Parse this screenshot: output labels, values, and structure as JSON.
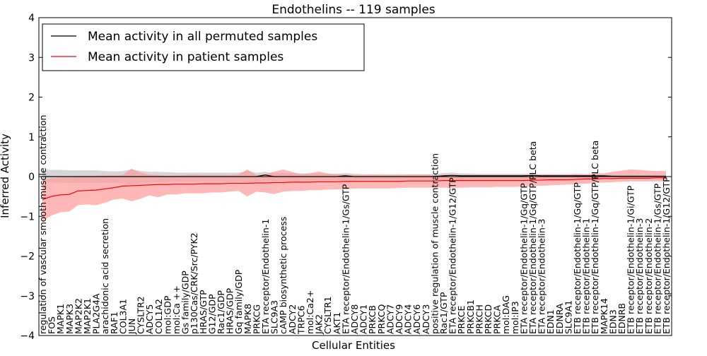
{
  "chart_data": {
    "type": "line",
    "title": "Endothelins -- 119 samples",
    "xlabel": "Cellular Entities",
    "ylabel": "Inferred Activity",
    "ylim": [
      -4,
      4
    ],
    "yticks": [
      4,
      3,
      2,
      1,
      0,
      -1,
      -2,
      -3,
      -4
    ],
    "grid": false,
    "legend_position": "top-left",
    "legend": [
      "Mean activity in all permuted samples",
      "Mean activity in patient samples"
    ],
    "colors": {
      "permuted_line": "#000000",
      "permuted_band": "#c8c8c8",
      "patient_line": "#ff0000",
      "patient_band": "#ff9a9a",
      "zero_line": "#000000"
    },
    "categories": [
      "regulation of vascular smooth muscle contraction",
      "FOS",
      "MAPK1",
      "MAPK3",
      "MAP2K2",
      "MAP2K1",
      "PLA2G4A",
      "arachidonic acid secretion",
      "RAF1",
      "COL3A1",
      "JUN",
      "CYSLTR2",
      "ADCY5",
      "COL1A2",
      "mol:GDP",
      "mol:Ca ++",
      "Gs family/GDP",
      "p130Cas/CRK/Src/PYK2",
      "HRAS/GTP",
      "G12/GDP",
      "Rac1/GDP",
      "HRAS/GDP",
      "Gq family/GDP",
      "MAPK8",
      "PRKCG",
      "ETA receptor/Endothelin-1",
      "SLC9A3",
      "cAMP biosynthetic process",
      "ADCY2",
      "TRPC6",
      "mol:Ca2+",
      "JAK2",
      "CYSLTR1",
      "AKT1",
      "ETA receptor/Endothelin-1/Gs/GTP",
      "ADCY8",
      "ADCY1",
      "PRKCB",
      "PRKCQ",
      "ADCY7",
      "ADCY9",
      "ADCY4",
      "ADCY6",
      "ADCY3",
      "positive regulation of muscle contraction",
      "Rac1/GTP",
      "ETA receptor/Endothelin-1/G12/GTP",
      "PRKCE",
      "PRKCB1",
      "PRKCH",
      "PRKCD",
      "PRKCA",
      "mol:DAG",
      "mol:IP3",
      "ETA receptor/Endothelin-1/Gq/GTP",
      "ETA receptor/Endothelin-1/Gq/GTP/PLC beta",
      "ETA receptor/Endothelin-3",
      "EDN1",
      "EDNRA",
      "SLC9A1",
      "ETB receptor/Endothelin-1/Gq/GTP",
      "ETB receptor/Endothelin-1",
      "ETB receptor/Endothelin-1/Gq/GTP/PLC beta",
      "MAPK14",
      "EDN3",
      "EDNRB",
      "ETB receptor/Endothelin-1/Gi/GTP",
      "ETB receptor/Endothelin-3",
      "ETB receptor/Endothelin-2",
      "ETB receptor/Endothelin-1/Gs/GTP",
      "ETB receptor/Endothelin-1/G12/GTP"
    ],
    "series": [
      {
        "name": "Mean activity in all permuted samples",
        "values": [
          0,
          0,
          0,
          0,
          0,
          0,
          0,
          0,
          0,
          0,
          0,
          0,
          0,
          0,
          0,
          0,
          0,
          0,
          0,
          0,
          0,
          0,
          0,
          0,
          0,
          0.04,
          0,
          0,
          0,
          0,
          0,
          0,
          0,
          0,
          0.02,
          0,
          0,
          0,
          0,
          0,
          0,
          0,
          0,
          0,
          0,
          0.02,
          0.03,
          0.02,
          0.02,
          0.02,
          0.02,
          0.02,
          0.02,
          0.02,
          0.02,
          0.03,
          0.02,
          0.02,
          0.02,
          0.02,
          0.02,
          0.02,
          0.02,
          0.02,
          0.01,
          0.01,
          0.01,
          0.01,
          0.01,
          0.01,
          0.01
        ],
        "lower": [
          -0.12,
          -0.15,
          -0.15,
          -0.16,
          -0.16,
          -0.16,
          -0.16,
          -0.15,
          -0.16,
          -0.17,
          -0.2,
          -0.16,
          -0.15,
          -0.15,
          -0.14,
          -0.13,
          -0.13,
          -0.13,
          -0.12,
          -0.12,
          -0.12,
          -0.12,
          -0.12,
          -0.15,
          -0.12,
          -0.12,
          -0.12,
          -0.12,
          -0.12,
          -0.11,
          -0.1,
          -0.1,
          -0.1,
          -0.1,
          -0.1,
          -0.09,
          -0.09,
          -0.08,
          -0.08,
          -0.08,
          -0.08,
          -0.08,
          -0.08,
          -0.08,
          -0.08,
          -0.1,
          -0.1,
          -0.09,
          -0.09,
          -0.08,
          -0.08,
          -0.08,
          -0.08,
          -0.08,
          -0.08,
          -0.08,
          -0.07,
          -0.07,
          -0.06,
          -0.06,
          -0.06,
          -0.06,
          -0.06,
          -0.06,
          -0.05,
          -0.05,
          -0.05,
          -0.05,
          -0.05,
          -0.05,
          -0.05
        ],
        "upper": [
          0.17,
          0.17,
          0.17,
          0.16,
          0.16,
          0.16,
          0.16,
          0.14,
          0.13,
          0.14,
          0.18,
          0.14,
          0.12,
          0.12,
          0.11,
          0.1,
          0.1,
          0.1,
          0.1,
          0.1,
          0.1,
          0.1,
          0.1,
          0.14,
          0.1,
          0.12,
          0.09,
          0.09,
          0.09,
          0.08,
          0.08,
          0.08,
          0.07,
          0.07,
          0.09,
          0.07,
          0.06,
          0.06,
          0.06,
          0.06,
          0.06,
          0.06,
          0.06,
          0.06,
          0.06,
          0.09,
          0.1,
          0.08,
          0.08,
          0.07,
          0.07,
          0.07,
          0.07,
          0.07,
          0.07,
          0.07,
          0.06,
          0.06,
          0.05,
          0.05,
          0.05,
          0.05,
          0.05,
          0.05,
          0.04,
          0.04,
          0.04,
          0.04,
          0.04,
          0.04,
          0.04
        ]
      },
      {
        "name": "Mean activity in patient samples",
        "values": [
          -0.58,
          -0.5,
          -0.46,
          -0.45,
          -0.36,
          -0.35,
          -0.34,
          -0.31,
          -0.28,
          -0.24,
          -0.23,
          -0.22,
          -0.21,
          -0.2,
          -0.2,
          -0.19,
          -0.19,
          -0.19,
          -0.18,
          -0.18,
          -0.18,
          -0.17,
          -0.17,
          -0.17,
          -0.16,
          -0.16,
          -0.15,
          -0.15,
          -0.14,
          -0.14,
          -0.14,
          -0.13,
          -0.13,
          -0.13,
          -0.12,
          -0.12,
          -0.12,
          -0.12,
          -0.12,
          -0.12,
          -0.12,
          -0.11,
          -0.11,
          -0.11,
          -0.11,
          -0.1,
          -0.1,
          -0.1,
          -0.1,
          -0.1,
          -0.1,
          -0.1,
          -0.1,
          -0.1,
          -0.1,
          -0.09,
          -0.09,
          -0.08,
          -0.08,
          -0.08,
          -0.07,
          -0.06,
          -0.06,
          -0.05,
          -0.05,
          -0.04,
          -0.04,
          -0.04,
          -0.04,
          -0.03,
          -0.03
        ],
        "lower": [
          -1.12,
          -0.98,
          -0.9,
          -0.88,
          -0.72,
          -0.7,
          -0.72,
          -0.66,
          -0.58,
          -0.55,
          -0.62,
          -0.56,
          -0.47,
          -0.52,
          -0.45,
          -0.45,
          -0.42,
          -0.42,
          -0.42,
          -0.4,
          -0.4,
          -0.38,
          -0.36,
          -0.5,
          -0.38,
          -0.4,
          -0.44,
          -0.38,
          -0.36,
          -0.36,
          -0.34,
          -0.34,
          -0.33,
          -0.32,
          -0.32,
          -0.3,
          -0.3,
          -0.3,
          -0.3,
          -0.3,
          -0.29,
          -0.28,
          -0.28,
          -0.28,
          -0.28,
          -0.28,
          -0.28,
          -0.28,
          -0.27,
          -0.27,
          -0.27,
          -0.26,
          -0.26,
          -0.26,
          -0.25,
          -0.24,
          -0.23,
          -0.22,
          -0.21,
          -0.2,
          -0.19,
          -0.18,
          -0.16,
          -0.15,
          -0.14,
          -0.13,
          -0.12,
          -0.12,
          -0.12,
          -0.12,
          -0.12
        ],
        "upper": [
          -0.08,
          -0.04,
          -0.02,
          -0.02,
          -0.01,
          0,
          0.02,
          0.03,
          0.03,
          0.04,
          0.2,
          0.1,
          0.05,
          0.04,
          0.02,
          0.03,
          0.04,
          0.05,
          0.04,
          0.04,
          0.04,
          0.04,
          0.05,
          0.18,
          0.04,
          0.06,
          0.12,
          0.18,
          0.12,
          0.06,
          0.08,
          0.13,
          0.08,
          0.06,
          0.05,
          0.04,
          0.04,
          0.05,
          0.04,
          0.04,
          0.04,
          0.05,
          0.05,
          0.05,
          0.04,
          0.04,
          0.05,
          0.04,
          0.05,
          0.05,
          0.05,
          0.05,
          0.05,
          0.05,
          0.05,
          0.05,
          0.05,
          0.06,
          0.06,
          0.06,
          0.07,
          0.06,
          0.08,
          0.08,
          0.12,
          0.15,
          0.18,
          0.17,
          0.15,
          0.14,
          0.14
        ]
      }
    ]
  }
}
